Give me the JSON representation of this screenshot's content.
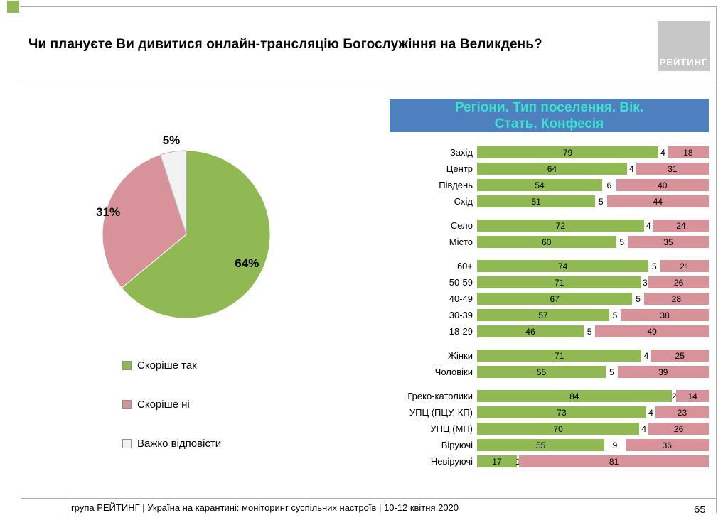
{
  "slide": {
    "title": "Чи плануєте Ви дивитися онлайн-трансляцію Богослужіння на Великдень?",
    "logo_text": "РЕЙТИНГ",
    "footer": "група РЕЙТИНГ | Україна на карантині: моніторинг суспільних настроїв  | 10-12 квітня  2020",
    "page_number": "65"
  },
  "colors": {
    "yes_green": "#90B954",
    "no_pink": "#D8929A",
    "undecided_grey": "#F2F2F2",
    "header_bg": "#4E7FBE",
    "header_text": "#3CE3CC"
  },
  "legend": [
    {
      "label": "Скоріше так",
      "color": "#90B954"
    },
    {
      "label": "Скоріше ні",
      "color": "#D8929A"
    },
    {
      "label": "Важко відповісти",
      "color": "#F2F2F2"
    }
  ],
  "chart_data": [
    {
      "type": "pie",
      "title": "Чи плануєте Ви дивитися онлайн-трансляцію Богослужіння на Великдень?",
      "labels": [
        "Скоріше так",
        "Скоріше ні",
        "Важко відповісти"
      ],
      "values": [
        64,
        31,
        5
      ],
      "unit": "%",
      "colors": [
        "#90B954",
        "#D8929A",
        "#F2F2F2"
      ],
      "start_angle": "top",
      "direction": "clockwise",
      "legend_position": "bottom-left"
    },
    {
      "type": "bar",
      "orientation": "horizontal",
      "stacked": true,
      "title": "Регіони. Тип поселення. Вік. Стать. Конфесія",
      "title_lines": [
        "Регіони. Тип поселення. Вік.",
        "Стать. Конфесія"
      ],
      "series": [
        "Скоріше так",
        "Важко відповісти",
        "Скоріше ні"
      ],
      "colors": [
        "#90B954",
        "#FFFFFF",
        "#D8929A"
      ],
      "xlim": [
        0,
        100
      ],
      "value_labels": "inside",
      "groups": [
        {
          "rows": [
            {
              "label": "Захід",
              "values": [
                79,
                4,
                18
              ]
            },
            {
              "label": "Центр",
              "values": [
                64,
                4,
                31
              ]
            },
            {
              "label": "Південь",
              "values": [
                54,
                6,
                40
              ]
            },
            {
              "label": "Схід",
              "values": [
                51,
                5,
                44
              ]
            }
          ]
        },
        {
          "rows": [
            {
              "label": "Село",
              "values": [
                72,
                4,
                24
              ]
            },
            {
              "label": "Місто",
              "values": [
                60,
                5,
                35
              ]
            }
          ]
        },
        {
          "rows": [
            {
              "label": "60+",
              "values": [
                74,
                5,
                21
              ]
            },
            {
              "label": "50-59",
              "values": [
                71,
                3,
                26
              ]
            },
            {
              "label": "40-49",
              "values": [
                67,
                5,
                28
              ]
            },
            {
              "label": "30-39",
              "values": [
                57,
                5,
                38
              ]
            },
            {
              "label": "18-29",
              "values": [
                46,
                5,
                49
              ]
            }
          ]
        },
        {
          "rows": [
            {
              "label": "Жінки",
              "values": [
                71,
                4,
                25
              ]
            },
            {
              "label": "Чоловіки",
              "values": [
                55,
                5,
                39
              ]
            }
          ]
        },
        {
          "rows": [
            {
              "label": "Греко-католики",
              "values": [
                84,
                2,
                14
              ]
            },
            {
              "label": "УПЦ (ПЦУ, КП)",
              "values": [
                73,
                4,
                23
              ]
            },
            {
              "label": "УПЦ (МП)",
              "values": [
                70,
                4,
                26
              ]
            },
            {
              "label": "Віруючі",
              "values": [
                55,
                9,
                36
              ]
            },
            {
              "label": "Невіруючі",
              "values": [
                17,
                1,
                81
              ]
            }
          ]
        }
      ]
    }
  ]
}
